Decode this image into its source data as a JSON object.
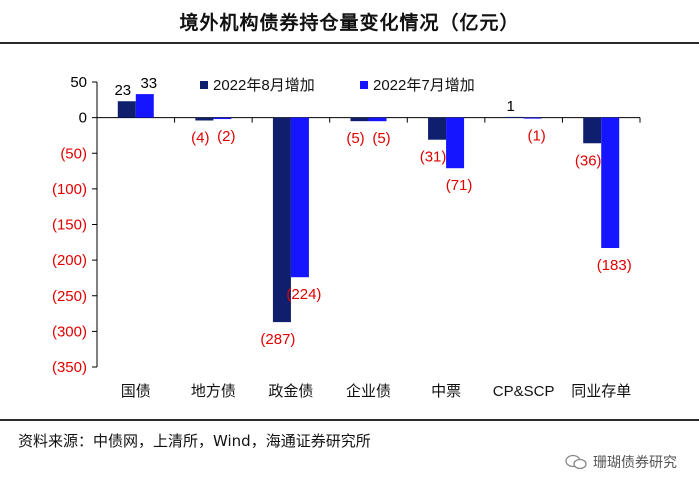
{
  "title": "境外机构债券持仓量变化情况（亿元）",
  "source": "资料来源：中债网，上清所，Wind，海通证券研究所",
  "watermark": "珊瑚债券研究",
  "colors": {
    "series_aug": "#0f1f6e",
    "series_jul": "#1515ff",
    "negative_label": "#e00000",
    "positive_label": "#000000"
  },
  "chart_data": {
    "type": "bar",
    "categories": [
      "国债",
      "地方债",
      "政金债",
      "企业债",
      "中票",
      "CP&SCP",
      "同业存单"
    ],
    "series": [
      {
        "name": "2022年8月增加",
        "values": [
          23,
          -4,
          -287,
          -5,
          -31,
          1,
          -36
        ],
        "labels": [
          "23",
          "(4)",
          "(287)",
          "(5)",
          "(31)",
          "1",
          "(36)"
        ]
      },
      {
        "name": "2022年7月增加",
        "values": [
          33,
          -2,
          -224,
          -5,
          -71,
          -1,
          -183
        ],
        "labels": [
          "33",
          "(2)",
          "(224)",
          "(5)",
          "(71)",
          "(1)",
          "(183)"
        ]
      }
    ],
    "ylim": [
      -350,
      50
    ],
    "yticks": [
      50,
      0,
      -50,
      -100,
      -150,
      -200,
      -250,
      -300,
      -350
    ],
    "ytick_labels": [
      "50",
      "0",
      "(50)",
      "(100)",
      "(150)",
      "(200)",
      "(250)",
      "(300)",
      "(350)"
    ],
    "legend_position": "top",
    "grid": false
  }
}
